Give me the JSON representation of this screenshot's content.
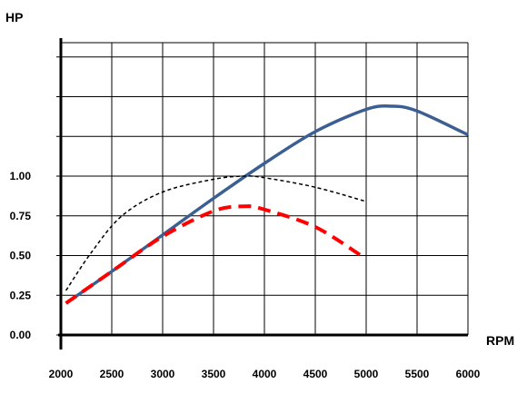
{
  "chart_data": {
    "type": "line",
    "xlabel": "RPM",
    "ylabel": "HP",
    "xlim": [
      2000,
      6000
    ],
    "ylim": [
      0,
      1.5
    ],
    "x_ticks": [
      "2000",
      "2500",
      "3000",
      "3500",
      "4000",
      "4500",
      "5000",
      "5500",
      "6000"
    ],
    "y_ticks": [
      "0.00",
      "0.25",
      "0.50",
      "0.75",
      "1.00"
    ],
    "grid": true,
    "series": [
      {
        "style": "solid",
        "color": "#3b5f92",
        "x": [
          2050,
          2500,
          3000,
          3500,
          4000,
          4500,
          5000,
          5250,
          5500,
          6000
        ],
        "y": [
          0.2,
          0.4,
          0.63,
          0.86,
          1.08,
          1.28,
          1.42,
          1.44,
          1.41,
          1.26
        ]
      },
      {
        "style": "dotted",
        "color": "#000000",
        "x": [
          2050,
          2300,
          2600,
          3000,
          3500,
          3800,
          4000,
          4500,
          5000
        ],
        "y": [
          0.28,
          0.52,
          0.75,
          0.9,
          0.98,
          1.0,
          0.99,
          0.93,
          0.84
        ]
      },
      {
        "style": "dashed",
        "color": "#ff0000",
        "x": [
          2050,
          2500,
          3000,
          3500,
          3800,
          4000,
          4500,
          4950
        ],
        "y": [
          0.2,
          0.4,
          0.62,
          0.78,
          0.81,
          0.79,
          0.68,
          0.5
        ]
      }
    ]
  }
}
